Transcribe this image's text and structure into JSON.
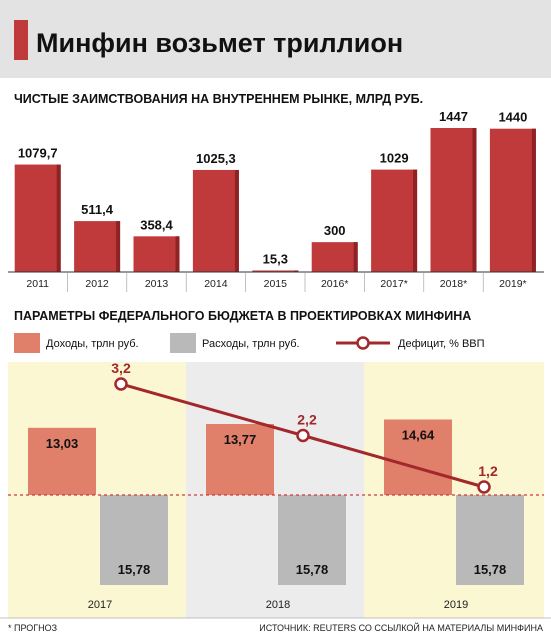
{
  "header": {
    "title": "Минфин возьмет триллион"
  },
  "colors": {
    "bar_red": "#c0393b",
    "bar_red_dark": "#8e2224",
    "income_salmon": "#e0806a",
    "expense_gray": "#b9b9b9",
    "deficit_line": "#a3282b",
    "highlight_yellow": "#fbf7d2",
    "highlight_gray": "#ececec",
    "baseline_red": "#d13838"
  },
  "chart_data": [
    {
      "type": "bar",
      "title": "ЧИСТЫЕ ЗАИМСТВОВАНИЯ НА ВНУТРЕННЕМ РЫНКЕ, МЛРД РУБ.",
      "categories": [
        "2011",
        "2012",
        "2013",
        "2014",
        "2015",
        "2016*",
        "2017*",
        "2018*",
        "2019*"
      ],
      "values": [
        1079.7,
        511.4,
        358.4,
        1025.3,
        15.3,
        300,
        1029,
        1447,
        1440
      ],
      "value_labels": [
        "1079,7",
        "511,4",
        "358,4",
        "1025,3",
        "15,3",
        "300",
        "1029",
        "1447",
        "1440"
      ],
      "ylim": [
        0,
        1447
      ],
      "grid": false
    },
    {
      "type": "bar",
      "title": "ПАРАМЕТРЫ ФЕДЕРАЛЬНОГО БЮДЖЕТА В ПРОЕКТИРОВКАХ МИНФИНА",
      "categories": [
        "2017",
        "2018",
        "2019"
      ],
      "legend_position": "top",
      "series": [
        {
          "name": "Доходы, трлн руб.",
          "values": [
            13.03,
            13.77,
            14.64
          ],
          "value_labels": [
            "13,03",
            "13,77",
            "14,64"
          ]
        },
        {
          "name": "Расходы, трлн руб.",
          "values": [
            15.78,
            15.78,
            15.78
          ],
          "value_labels": [
            "15,78",
            "15,78",
            "15,78"
          ]
        }
      ],
      "line_series": {
        "name": "Дефицит, % ВВП",
        "values": [
          3.2,
          2.2,
          1.2
        ],
        "value_labels": [
          "3,2",
          "2,2",
          "1,2"
        ]
      }
    }
  ],
  "footer": {
    "note": "* ПРОГНОЗ",
    "source": "ИСТОЧНИК: REUTERS СО ССЫЛКОЙ НА МАТЕРИАЛЫ МИНФИНА"
  }
}
